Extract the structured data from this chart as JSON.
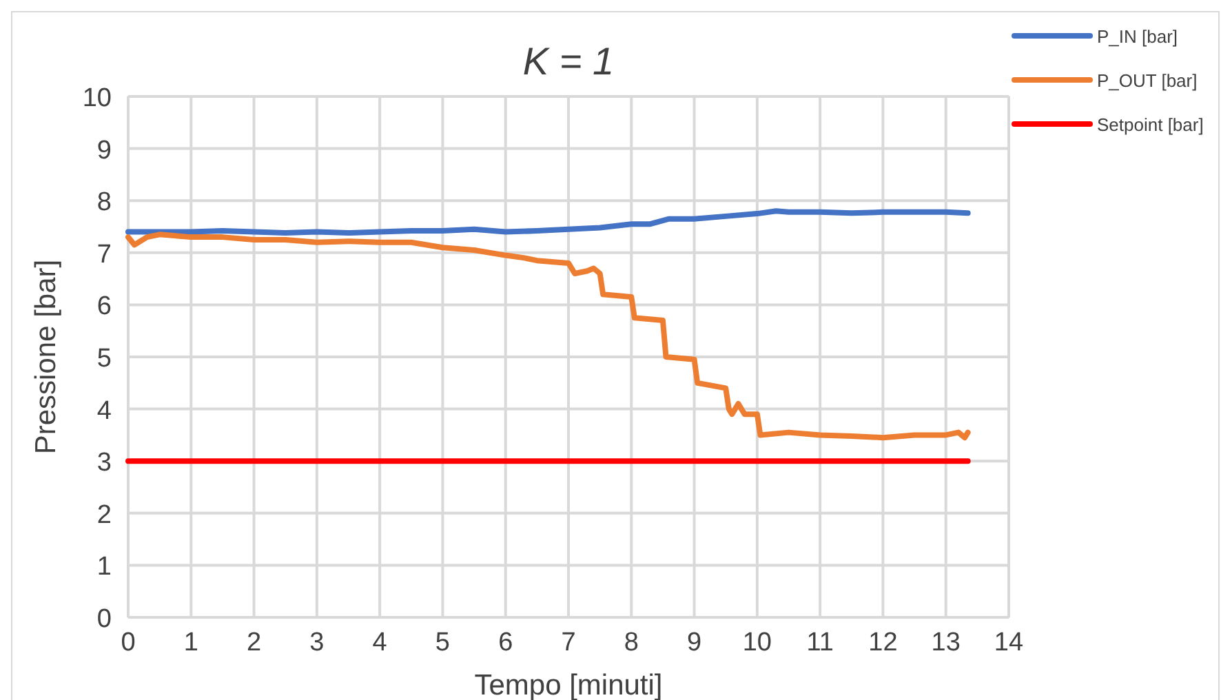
{
  "chart_data": {
    "type": "line",
    "title": "K = 1",
    "xlabel": "Tempo [minuti]",
    "ylabel": "Pressione [bar]",
    "xlim": [
      0,
      14
    ],
    "ylim": [
      0,
      10
    ],
    "xticks": [
      0,
      1,
      2,
      3,
      4,
      5,
      6,
      7,
      8,
      9,
      10,
      11,
      12,
      13,
      14
    ],
    "yticks": [
      0,
      1,
      2,
      3,
      4,
      5,
      6,
      7,
      8,
      9,
      10
    ],
    "grid": true,
    "legend": "top right",
    "marker": "none",
    "line_style": "solid",
    "series": [
      {
        "name": "P_IN [bar]",
        "color": "#4472c4",
        "x": [
          0,
          0.5,
          1,
          1.5,
          2,
          2.5,
          3,
          3.5,
          4,
          4.5,
          5,
          5.5,
          6,
          6.5,
          7,
          7.5,
          8,
          8.3,
          8.6,
          9,
          9.5,
          10,
          10.3,
          10.5,
          11,
          11.5,
          12,
          12.5,
          13,
          13.35
        ],
        "values": [
          7.4,
          7.4,
          7.4,
          7.42,
          7.4,
          7.38,
          7.4,
          7.38,
          7.4,
          7.42,
          7.42,
          7.45,
          7.4,
          7.42,
          7.45,
          7.48,
          7.55,
          7.55,
          7.65,
          7.65,
          7.7,
          7.75,
          7.8,
          7.78,
          7.78,
          7.76,
          7.78,
          7.78,
          7.78,
          7.76
        ]
      },
      {
        "name": "P_OUT [bar]",
        "color": "#ed7d31",
        "x": [
          0,
          0.1,
          0.3,
          0.5,
          1,
          1.5,
          2,
          2.5,
          3,
          3.5,
          4,
          4.5,
          5,
          5.5,
          6,
          6.3,
          6.5,
          7,
          7.1,
          7.3,
          7.4,
          7.5,
          7.55,
          8,
          8.05,
          8.5,
          8.55,
          9,
          9.05,
          9.5,
          9.55,
          9.6,
          9.7,
          9.8,
          10,
          10.05,
          10.5,
          11,
          11.5,
          12,
          12.5,
          13,
          13.2,
          13.3,
          13.35
        ],
        "values": [
          7.3,
          7.15,
          7.3,
          7.35,
          7.3,
          7.3,
          7.25,
          7.25,
          7.2,
          7.22,
          7.2,
          7.2,
          7.1,
          7.05,
          6.95,
          6.9,
          6.85,
          6.8,
          6.6,
          6.65,
          6.7,
          6.6,
          6.2,
          6.15,
          5.75,
          5.7,
          5.0,
          4.95,
          4.5,
          4.4,
          4.0,
          3.9,
          4.1,
          3.9,
          3.9,
          3.5,
          3.55,
          3.5,
          3.48,
          3.45,
          3.5,
          3.5,
          3.55,
          3.45,
          3.55
        ]
      },
      {
        "name": "Setpoint [bar]",
        "color": "#ff0000",
        "x": [
          0,
          13.35
        ],
        "values": [
          3,
          3
        ]
      }
    ]
  }
}
